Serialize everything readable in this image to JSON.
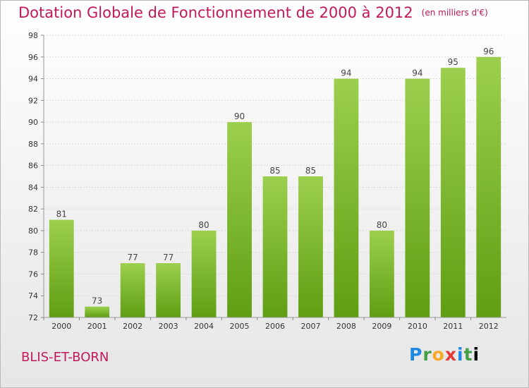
{
  "chart_data": {
    "type": "bar",
    "title": "Dotation Globale de Fonctionnement de 2000 à 2012",
    "unit_note": "(en milliers d'€)",
    "categories": [
      "2000",
      "2001",
      "2002",
      "2003",
      "2004",
      "2005",
      "2006",
      "2007",
      "2008",
      "2009",
      "2010",
      "2011",
      "2012"
    ],
    "values": [
      81,
      73,
      77,
      77,
      80,
      90,
      85,
      85,
      94,
      80,
      94,
      95,
      96
    ],
    "data_labels": [
      "81",
      "73",
      "77",
      "77",
      "80",
      "90",
      "85",
      "85",
      "94",
      "80",
      "94",
      "95",
      "96"
    ],
    "ylim": [
      72,
      98
    ],
    "yticks": [
      72,
      74,
      76,
      78,
      80,
      82,
      84,
      86,
      88,
      90,
      92,
      94,
      96,
      98
    ],
    "grid": true,
    "bar_color_top": "#9ccf4e",
    "bar_color_bottom": "#5f9e12"
  },
  "place_name": "BLIS-ET-BORN",
  "logo": {
    "letters": [
      "P",
      "r",
      "o",
      "x",
      "i",
      "t",
      "i"
    ]
  }
}
